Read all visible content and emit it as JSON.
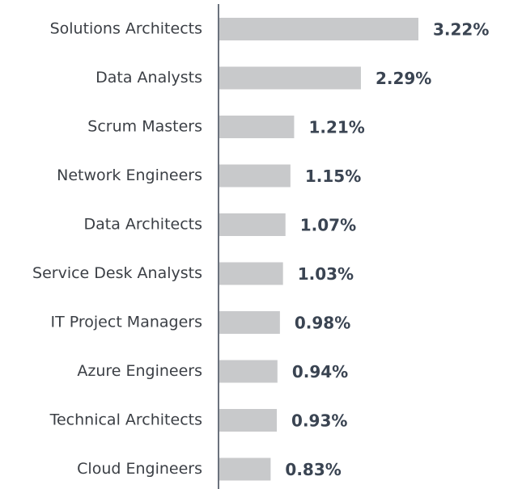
{
  "chart_data": {
    "type": "bar",
    "orientation": "horizontal",
    "categories": [
      "Solutions Architects",
      "Data Analysts",
      "Scrum Masters",
      "Network Engineers",
      "Data Architects",
      "Service Desk Analysts",
      "IT Project Managers",
      "Azure Engineers",
      "Technical Architects",
      "Cloud Engineers"
    ],
    "values": [
      3.22,
      2.29,
      1.21,
      1.15,
      1.07,
      1.03,
      0.98,
      0.94,
      0.93,
      0.83
    ],
    "value_labels": [
      "3.22%",
      "2.29%",
      "1.21%",
      "1.15%",
      "1.07%",
      "1.03%",
      "0.98%",
      "0.94%",
      "0.93%",
      "0.83%"
    ],
    "color": "#c8c9cb"
  }
}
